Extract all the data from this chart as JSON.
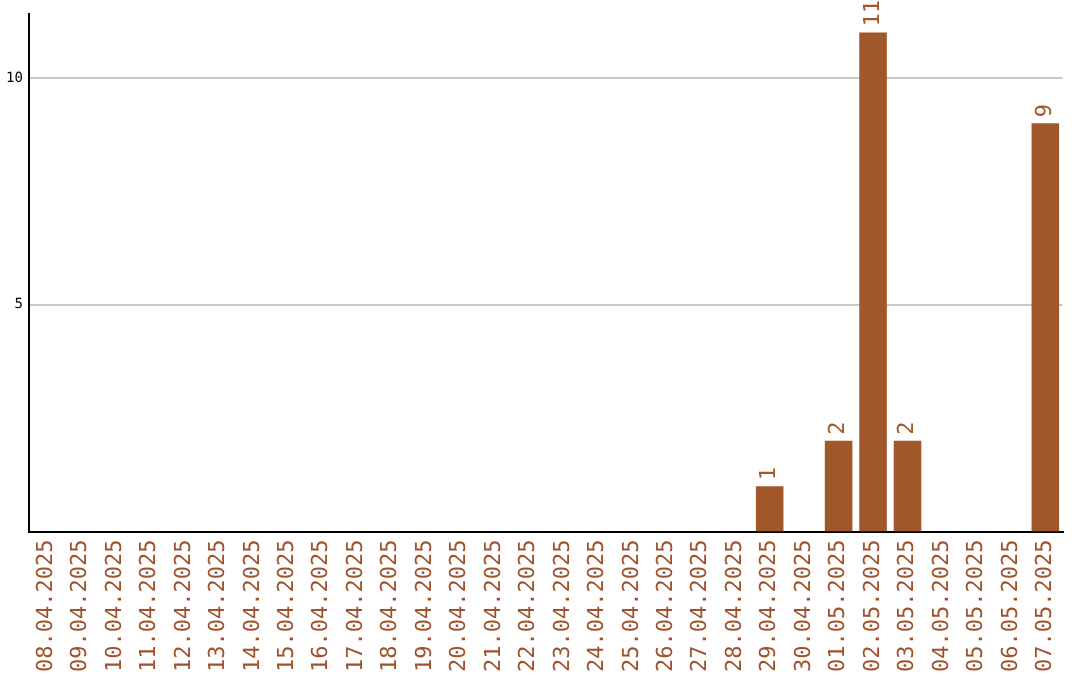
{
  "chart_data": {
    "type": "bar",
    "categories": [
      "08.04.2025",
      "09.04.2025",
      "10.04.2025",
      "11.04.2025",
      "12.04.2025",
      "13.04.2025",
      "14.04.2025",
      "15.04.2025",
      "16.04.2025",
      "17.04.2025",
      "18.04.2025",
      "19.04.2025",
      "20.04.2025",
      "21.04.2025",
      "22.04.2025",
      "23.04.2025",
      "24.04.2025",
      "25.04.2025",
      "26.04.2025",
      "27.04.2025",
      "28.04.2025",
      "29.04.2025",
      "30.04.2025",
      "01.05.2025",
      "02.05.2025",
      "03.05.2025",
      "04.05.2025",
      "05.05.2025",
      "06.05.2025",
      "07.05.2025"
    ],
    "values": [
      0,
      0,
      0,
      0,
      0,
      0,
      0,
      0,
      0,
      0,
      0,
      0,
      0,
      0,
      0,
      0,
      0,
      0,
      0,
      0,
      0,
      1,
      0,
      2,
      11,
      2,
      0,
      0,
      0,
      9
    ],
    "value_labels": [
      null,
      null,
      null,
      null,
      null,
      null,
      null,
      null,
      null,
      null,
      null,
      null,
      null,
      null,
      null,
      null,
      null,
      null,
      null,
      null,
      null,
      "1",
      null,
      "2",
      "11",
      "2",
      null,
      null,
      null,
      "9"
    ],
    "color": "#a0582a",
    "ylim": [
      0,
      11.4
    ],
    "yticks": [
      5,
      10
    ],
    "grid": "y",
    "legend": false
  }
}
